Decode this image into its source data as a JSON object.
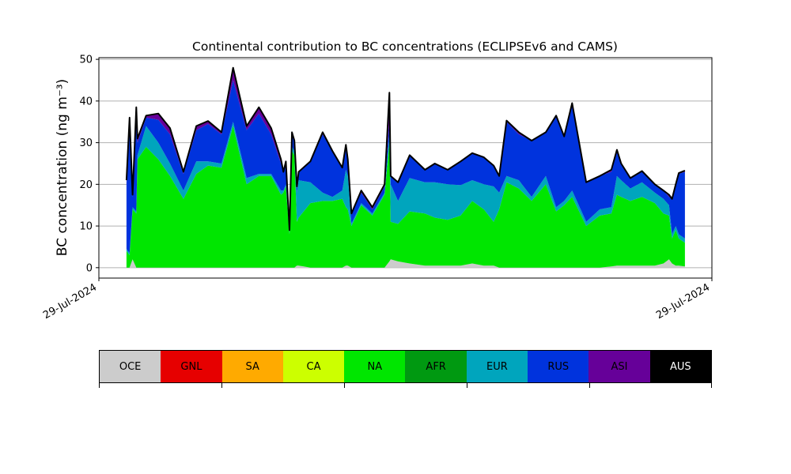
{
  "chart_data": {
    "type": "area",
    "stacked": true,
    "title": "Continental contribution to BC concentrations (ECLIPSEv6 and CAMS)",
    "xlabel": "",
    "ylabel": "BC concentration (ng m⁻³)",
    "ylim": [
      -2.5,
      50.4
    ],
    "xlim": [
      0,
      100
    ],
    "yticks": [
      0,
      10,
      20,
      30,
      40,
      50
    ],
    "xtick_labels": [
      "29-Jul-2024",
      "29-Jul-2024"
    ],
    "grid": "horizontal",
    "total_line_color": "#000000",
    "x": [
      4.5,
      5.0,
      5.5,
      6.1,
      6.3,
      7.7,
      9.7,
      11.6,
      13.8,
      15.9,
      17.8,
      20.0,
      21.9,
      24.1,
      26.1,
      28.1,
      29.7,
      30.1,
      30.5,
      31.1,
      31.5,
      31.9,
      32.3,
      32.6,
      34.5,
      36.5,
      38.1,
      39.7,
      40.3,
      40.6,
      41.2,
      42.8,
      44.6,
      46.6,
      47.4,
      47.6,
      48.8,
      50.7,
      53.2,
      54.8,
      56.9,
      59.0,
      60.9,
      62.8,
      64.4,
      65.3,
      66.5,
      68.5,
      70.6,
      72.9,
      74.6,
      75.9,
      77.2,
      79.5,
      81.7,
      83.6,
      84.5,
      85.2,
      86.7,
      88.6,
      90.7,
      92.1,
      93.0,
      93.5,
      94.1,
      94.6,
      95.6
    ],
    "series": [
      {
        "name": "OCE",
        "color": "#cccccc",
        "values": [
          0,
          0,
          2,
          0,
          0,
          0,
          0,
          0,
          0,
          0,
          0,
          0,
          0,
          0,
          0,
          0,
          0,
          0,
          0,
          0,
          0,
          0,
          0.5,
          0.5,
          0,
          0,
          0,
          0,
          0.5,
          0.5,
          0,
          0,
          0,
          0,
          1.5,
          2,
          1.5,
          1,
          0.5,
          0.5,
          0.5,
          0.5,
          1,
          0.5,
          0.5,
          0,
          0,
          0,
          0,
          0,
          0,
          0,
          0,
          0,
          0,
          0.3,
          0.5,
          0.5,
          0.5,
          0.5,
          0.5,
          1,
          2,
          1,
          0.5,
          0.5,
          0.3
        ]
      },
      {
        "name": "NA",
        "color": "#00e600",
        "values": [
          4,
          3,
          12,
          13,
          26,
          29,
          26,
          22,
          16.5,
          22.5,
          24.5,
          24,
          34,
          20,
          22,
          22,
          17.5,
          18,
          19.5,
          8,
          28,
          27,
          10.5,
          11.5,
          15.5,
          16,
          16,
          16.5,
          14,
          13.5,
          10,
          15,
          12.5,
          17.5,
          28.5,
          9,
          9,
          12.5,
          12.5,
          11.5,
          11,
          12,
          15,
          13.5,
          10.5,
          14,
          20.5,
          19,
          16,
          20,
          13.5,
          15,
          17,
          10,
          12.5,
          12.7,
          17,
          16.5,
          15.5,
          16.5,
          15,
          12,
          10.5,
          6,
          8.5,
          6.5,
          5.7
        ]
      },
      {
        "name": "EUR",
        "color": "#00a5bd",
        "values": [
          0.5,
          0.5,
          0.5,
          0.5,
          1,
          5,
          4,
          3,
          2,
          3,
          1,
          1,
          1,
          1.5,
          0.5,
          0.5,
          1,
          0.5,
          0.5,
          0.5,
          1,
          1,
          7,
          9,
          5,
          2,
          1,
          2,
          9,
          8,
          0.5,
          0.5,
          0.5,
          0.5,
          2,
          9,
          5.5,
          8,
          7.5,
          8.5,
          8.5,
          7.3,
          5,
          6,
          8.5,
          4,
          1.5,
          2,
          1,
          2,
          1,
          1,
          1.5,
          1,
          1.5,
          1.5,
          4.5,
          4,
          3,
          3.5,
          2.5,
          3.5,
          2.5,
          1,
          1,
          1,
          1
        ]
      },
      {
        "name": "RUS",
        "color": "#0033dd",
        "values": [
          15.5,
          32.5,
          2.5,
          23.5,
          3,
          2,
          5.5,
          7,
          4,
          7.5,
          9,
          7,
          10,
          11.5,
          14.5,
          9.5,
          6.5,
          4.5,
          5,
          0.5,
          3.5,
          2,
          1,
          2,
          5,
          14,
          11,
          5.5,
          6,
          3,
          2.5,
          2.5,
          1,
          1.5,
          3,
          2,
          4.5,
          5.5,
          3,
          4.5,
          3.5,
          5.7,
          6.5,
          6.5,
          5,
          4,
          13,
          11,
          13.5,
          10.5,
          22,
          15.5,
          21,
          9.5,
          8,
          8.5,
          6,
          4,
          2.5,
          2.5,
          2,
          2,
          2,
          8.5,
          9.5,
          14.5,
          16
        ]
      },
      {
        "name": "ASI",
        "color": "#660099",
        "values": [
          1,
          0,
          0.5,
          1.5,
          1,
          0.5,
          1.5,
          1.5,
          0.5,
          1,
          0.7,
          0.5,
          3,
          1,
          1.5,
          1.5,
          1,
          0,
          0.5,
          0,
          0,
          0.5,
          0.5,
          0,
          0,
          0.5,
          0,
          0,
          0,
          1,
          0,
          0.5,
          0.5,
          0.5,
          7,
          0,
          0,
          0,
          0,
          0,
          0,
          0,
          0,
          0,
          0,
          0,
          0.3,
          0.5,
          0,
          0,
          0,
          0,
          0,
          0,
          0,
          0.5,
          0.3,
          0,
          0,
          0.2,
          0,
          0,
          0.5,
          0,
          0.5,
          0.2,
          0.3
        ]
      }
    ],
    "legend": {
      "placement": "bottom",
      "entries": [
        {
          "label": "OCE",
          "color": "#cccccc"
        },
        {
          "label": "GNL",
          "color": "#e60000"
        },
        {
          "label": "SA",
          "color": "#ffaa00"
        },
        {
          "label": "CA",
          "color": "#ccff00"
        },
        {
          "label": "NA",
          "color": "#00e600"
        },
        {
          "label": "AFR",
          "color": "#009911"
        },
        {
          "label": "EUR",
          "color": "#00a5bd"
        },
        {
          "label": "RUS",
          "color": "#0033dd"
        },
        {
          "label": "ASI",
          "color": "#660099"
        },
        {
          "label": "AUS",
          "color": "#000000"
        }
      ]
    }
  }
}
